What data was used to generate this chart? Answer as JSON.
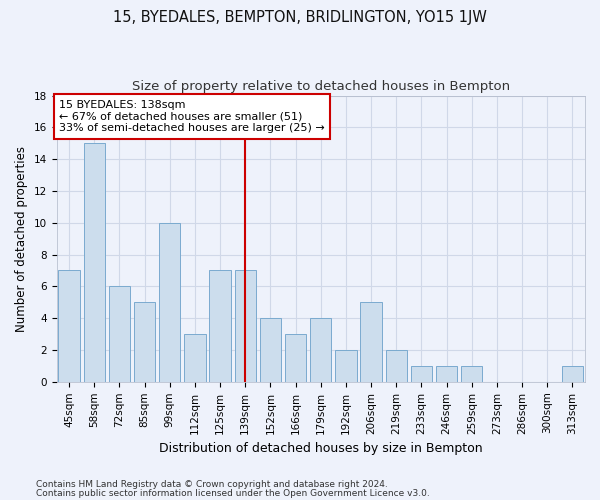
{
  "title": "15, BYEDALES, BEMPTON, BRIDLINGTON, YO15 1JW",
  "subtitle": "Size of property relative to detached houses in Bempton",
  "xlabel": "Distribution of detached houses by size in Bempton",
  "ylabel": "Number of detached properties",
  "categories": [
    "45sqm",
    "58sqm",
    "72sqm",
    "85sqm",
    "99sqm",
    "112sqm",
    "125sqm",
    "139sqm",
    "152sqm",
    "166sqm",
    "179sqm",
    "192sqm",
    "206sqm",
    "219sqm",
    "233sqm",
    "246sqm",
    "259sqm",
    "273sqm",
    "286sqm",
    "300sqm",
    "313sqm"
  ],
  "values": [
    7,
    15,
    6,
    5,
    10,
    3,
    7,
    7,
    4,
    3,
    4,
    2,
    5,
    2,
    1,
    1,
    1,
    0,
    0,
    0,
    1
  ],
  "bar_color": "#ccdded",
  "bar_edgecolor": "#7aaacf",
  "highlight_index": 7,
  "vline_color": "#cc0000",
  "annotation_title": "15 BYEDALES: 138sqm",
  "annotation_line1": "← 67% of detached houses are smaller (51)",
  "annotation_line2": "33% of semi-detached houses are larger (25) →",
  "annotation_box_color": "#ffffff",
  "annotation_box_edgecolor": "#cc0000",
  "ylim": [
    0,
    18
  ],
  "yticks": [
    0,
    2,
    4,
    6,
    8,
    10,
    12,
    14,
    16,
    18
  ],
  "footnote1": "Contains HM Land Registry data © Crown copyright and database right 2024.",
  "footnote2": "Contains public sector information licensed under the Open Government Licence v3.0.",
  "background_color": "#eef2fb",
  "grid_color": "#d0d8e8",
  "title_fontsize": 10.5,
  "subtitle_fontsize": 9.5,
  "xlabel_fontsize": 9,
  "ylabel_fontsize": 8.5,
  "tick_fontsize": 7.5,
  "annotation_fontsize": 8,
  "footnote_fontsize": 6.5
}
